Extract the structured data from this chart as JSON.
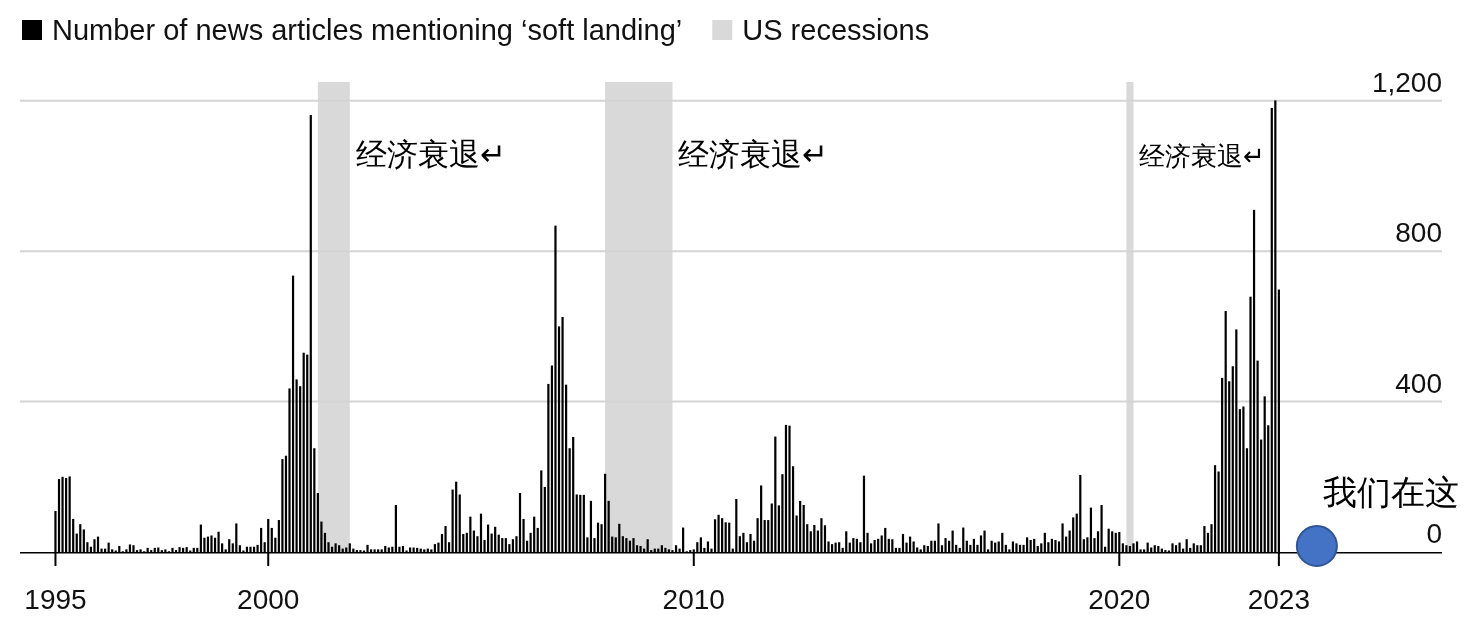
{
  "chart_data": {
    "type": "bar",
    "x": [
      "1995-01",
      "1995-02",
      "1995-03",
      "1995-04",
      "1995-05",
      "1995-06",
      "1995-07",
      "1995-08",
      "1995-09",
      "1995-10",
      "1995-11",
      "1995-12",
      "1996-01",
      "1996-02",
      "1996-03",
      "1996-04",
      "1996-05",
      "1996-06",
      "1996-07",
      "1996-08",
      "1996-09",
      "1996-10",
      "1996-11",
      "1996-12",
      "1997-01",
      "1997-02",
      "1997-03",
      "1997-04",
      "1997-05",
      "1997-06",
      "1997-07",
      "1997-08",
      "1997-09",
      "1997-10",
      "1997-11",
      "1997-12",
      "1998-01",
      "1998-02",
      "1998-03",
      "1998-04",
      "1998-05",
      "1998-06",
      "1998-07",
      "1998-08",
      "1998-09",
      "1998-10",
      "1998-11",
      "1998-12",
      "1999-01",
      "1999-02",
      "1999-03",
      "1999-04",
      "1999-05",
      "1999-06",
      "1999-07",
      "1999-08",
      "1999-09",
      "1999-10",
      "1999-11",
      "1999-12",
      "2000-01",
      "2000-02",
      "2000-03",
      "2000-04",
      "2000-05",
      "2000-06",
      "2000-07",
      "2000-08",
      "2000-09",
      "2000-10",
      "2000-11",
      "2000-12",
      "2001-01",
      "2001-02",
      "2001-03",
      "2001-04",
      "2001-05",
      "2001-06",
      "2001-07",
      "2001-08",
      "2001-09",
      "2001-10",
      "2001-11",
      "2001-12",
      "2002-01",
      "2002-02",
      "2002-03",
      "2002-04",
      "2002-05",
      "2002-06",
      "2002-07",
      "2002-08",
      "2002-09",
      "2002-10",
      "2002-11",
      "2002-12",
      "2003-01",
      "2003-02",
      "2003-03",
      "2003-04",
      "2003-05",
      "2003-06",
      "2003-07",
      "2003-08",
      "2003-09",
      "2003-10",
      "2003-11",
      "2003-12",
      "2004-01",
      "2004-02",
      "2004-03",
      "2004-04",
      "2004-05",
      "2004-06",
      "2004-07",
      "2004-08",
      "2004-09",
      "2004-10",
      "2004-11",
      "2004-12",
      "2005-01",
      "2005-02",
      "2005-03",
      "2005-04",
      "2005-05",
      "2005-06",
      "2005-07",
      "2005-08",
      "2005-09",
      "2005-10",
      "2005-11",
      "2005-12",
      "2006-01",
      "2006-02",
      "2006-03",
      "2006-04",
      "2006-05",
      "2006-06",
      "2006-07",
      "2006-08",
      "2006-09",
      "2006-10",
      "2006-11",
      "2006-12",
      "2007-01",
      "2007-02",
      "2007-03",
      "2007-04",
      "2007-05",
      "2007-06",
      "2007-07",
      "2007-08",
      "2007-09",
      "2007-10",
      "2007-11",
      "2007-12",
      "2008-01",
      "2008-02",
      "2008-03",
      "2008-04",
      "2008-05",
      "2008-06",
      "2008-07",
      "2008-08",
      "2008-09",
      "2008-10",
      "2008-11",
      "2008-12",
      "2009-01",
      "2009-02",
      "2009-03",
      "2009-04",
      "2009-05",
      "2009-06",
      "2009-07",
      "2009-08",
      "2009-09",
      "2009-10",
      "2009-11",
      "2009-12",
      "2010-01",
      "2010-02",
      "2010-03",
      "2010-04",
      "2010-05",
      "2010-06",
      "2010-07",
      "2010-08",
      "2010-09",
      "2010-10",
      "2010-11",
      "2010-12",
      "2011-01",
      "2011-02",
      "2011-03",
      "2011-04",
      "2011-05",
      "2011-06",
      "2011-07",
      "2011-08",
      "2011-09",
      "2011-10",
      "2011-11",
      "2011-12",
      "2012-01",
      "2012-02",
      "2012-03",
      "2012-04",
      "2012-05",
      "2012-06",
      "2012-07",
      "2012-08",
      "2012-09",
      "2012-10",
      "2012-11",
      "2012-12",
      "2013-01",
      "2013-02",
      "2013-03",
      "2013-04",
      "2013-05",
      "2013-06",
      "2013-07",
      "2013-08",
      "2013-09",
      "2013-10",
      "2013-11",
      "2013-12",
      "2014-01",
      "2014-02",
      "2014-03",
      "2014-04",
      "2014-05",
      "2014-06",
      "2014-07",
      "2014-08",
      "2014-09",
      "2014-10",
      "2014-11",
      "2014-12",
      "2015-01",
      "2015-02",
      "2015-03",
      "2015-04",
      "2015-05",
      "2015-06",
      "2015-07",
      "2015-08",
      "2015-09",
      "2015-10",
      "2015-11",
      "2015-12",
      "2016-01",
      "2016-02",
      "2016-03",
      "2016-04",
      "2016-05",
      "2016-06",
      "2016-07",
      "2016-08",
      "2016-09",
      "2016-10",
      "2016-11",
      "2016-12",
      "2017-01",
      "2017-02",
      "2017-03",
      "2017-04",
      "2017-05",
      "2017-06",
      "2017-07",
      "2017-08",
      "2017-09",
      "2017-10",
      "2017-11",
      "2017-12",
      "2018-01",
      "2018-02",
      "2018-03",
      "2018-04",
      "2018-05",
      "2018-06",
      "2018-07",
      "2018-08",
      "2018-09",
      "2018-10",
      "2018-11",
      "2018-12",
      "2019-01",
      "2019-02",
      "2019-03",
      "2019-04",
      "2019-05",
      "2019-06",
      "2019-07",
      "2019-08",
      "2019-09",
      "2019-10",
      "2019-11",
      "2019-12",
      "2020-01",
      "2020-02",
      "2020-03",
      "2020-04",
      "2020-05",
      "2020-06",
      "2020-07",
      "2020-08",
      "2020-09",
      "2020-10",
      "2020-11",
      "2020-12",
      "2021-01",
      "2021-02",
      "2021-03",
      "2021-04",
      "2021-05",
      "2021-06",
      "2021-07",
      "2021-08",
      "2021-09",
      "2021-10",
      "2021-11",
      "2021-12",
      "2022-01",
      "2022-02",
      "2022-03",
      "2022-04",
      "2022-05",
      "2022-06",
      "2022-07",
      "2022-08",
      "2022-09",
      "2022-10",
      "2022-11",
      "2022-12",
      "2023-01",
      "2023-02",
      "2023-03",
      "2023-04",
      "2023-05",
      "2023-06",
      "2023-07",
      "2023-08",
      "2023-09",
      "2023-10"
    ],
    "series": [
      {
        "name": "Number of news articles mentioning ‘soft landing’",
        "color": "#000000",
        "values": [
          109,
          194,
          200,
          197,
          201,
          88,
          49,
          74,
          60,
          26,
          14,
          34,
          41,
          9,
          9,
          25,
          7,
          4,
          16,
          2,
          7,
          20,
          18,
          5,
          7,
          2,
          11,
          5,
          11,
          12,
          5,
          7,
          2,
          11,
          5,
          13,
          11,
          13,
          4,
          11,
          11,
          73,
          38,
          41,
          44,
          38,
          54,
          23,
          7,
          34,
          23,
          76,
          18,
          4,
          14,
          14,
          14,
          19,
          64,
          26,
          88,
          64,
          38,
          85,
          247,
          256,
          435,
          735,
          459,
          441,
          530,
          525,
          1162,
          276,
          157,
          81,
          51,
          26,
          14,
          23,
          18,
          9,
          12,
          23,
          9,
          5,
          5,
          4,
          19,
          7,
          7,
          7,
          7,
          16,
          12,
          14,
          125,
          14,
          16,
          4,
          12,
          12,
          11,
          9,
          7,
          9,
          7,
          21,
          25,
          48,
          69,
          26,
          166,
          187,
          153,
          48,
          51,
          94,
          57,
          42,
          102,
          32,
          73,
          49,
          67,
          46,
          37,
          37,
          21,
          34,
          42,
          157,
          88,
          30,
          51,
          94,
          64,
          217,
          173,
          447,
          496,
          868,
          600,
          625,
          445,
          276,
          306,
          153,
          152,
          152,
          39,
          136,
          37,
          78,
          74,
          208,
          136,
          41,
          39,
          75,
          42,
          37,
          30,
          37,
          18,
          16,
          9,
          34,
          5,
          9,
          9,
          18,
          11,
          7,
          5,
          18,
          9,
          65,
          2,
          5,
          7,
          26,
          39,
          11,
          28,
          9,
          87,
          99,
          90,
          79,
          78,
          9,
          141,
          42,
          51,
          26,
          48,
          30,
          90,
          177,
          85,
          85,
          129,
          307,
          124,
          207,
          338,
          336,
          228,
          97,
          136,
          125,
          74,
          55,
          72,
          57,
          90,
          71,
          28,
          21,
          25,
          26,
          11,
          55,
          25,
          37,
          35,
          26,
          203,
          51,
          23,
          32,
          35,
          44,
          64,
          35,
          34,
          11,
          11,
          48,
          25,
          41,
          28,
          12,
          7,
          18,
          16,
          30,
          30,
          76,
          18,
          37,
          30,
          57,
          19,
          11,
          65,
          30,
          19,
          35,
          19,
          44,
          57,
          7,
          30,
          25,
          28,
          51,
          19,
          7,
          28,
          23,
          19,
          19,
          39,
          32,
          35,
          16,
          23,
          51,
          26,
          35,
          32,
          28,
          76,
          41,
          57,
          92,
          102,
          205,
          34,
          39,
          118,
          37,
          55,
          125,
          14,
          62,
          55,
          51,
          53,
          23,
          18,
          16,
          23,
          28,
          7,
          7,
          25,
          12,
          18,
          16,
          9,
          5,
          4,
          23,
          18,
          25,
          9,
          34,
          11,
          23,
          18,
          18,
          69,
          51,
          74,
          231,
          214,
          463,
          641,
          454,
          494,
          592,
          380,
          387,
          276,
          679,
          910,
          509,
          299,
          414,
          337,
          1181,
          1201,
          698
        ]
      }
    ],
    "xlim": [
      "1994-03",
      "2027-08"
    ],
    "xticks": [
      {
        "value": "1995-01",
        "label": "1995"
      },
      {
        "value": "2000-01",
        "label": "2000"
      },
      {
        "value": "2010-01",
        "label": "2010"
      },
      {
        "value": "2020-01",
        "label": "2020"
      },
      {
        "value": "2023-10",
        "label": "2023"
      }
    ],
    "ylim": [
      0,
      1250
    ],
    "yticks": [
      {
        "value": 0,
        "label": "0"
      },
      {
        "value": 400,
        "label": "400"
      },
      {
        "value": 800,
        "label": "800"
      },
      {
        "value": 1200,
        "label": "1,200"
      }
    ],
    "grid": "y",
    "legend": "top left",
    "bands": [
      {
        "axis": "x",
        "from": "2001-03",
        "to": "2001-12",
        "label": "US recessions",
        "color": "#d9d9d9"
      },
      {
        "axis": "x",
        "from": "2007-12",
        "to": "2009-07",
        "color": "#d9d9d9"
      },
      {
        "axis": "x",
        "from": "2020-03",
        "to": "2020-05",
        "color": "#d9d9d9"
      }
    ],
    "annotations": [
      "经济衰退↵",
      "经济衰退↵",
      "经济衰退↵",
      "我们在这"
    ]
  }
}
